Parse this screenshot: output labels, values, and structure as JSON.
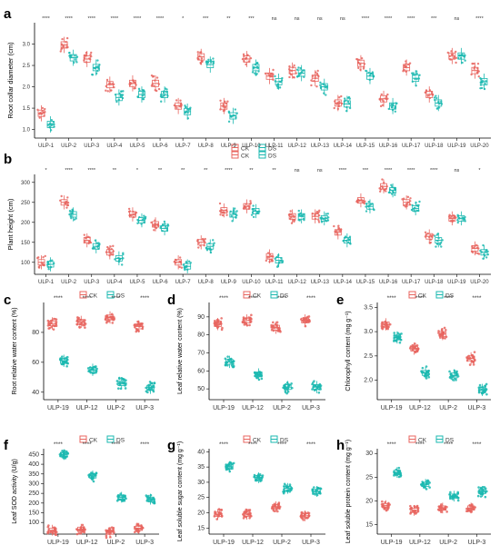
{
  "figure": {
    "colors": {
      "CK": "#e8655f",
      "DS": "#1bb8b0"
    }
  },
  "chart_data": [
    {
      "panel": "a",
      "type": "box",
      "ylabel": "Root collar diameter (cm)",
      "yticks": [
        "1.0",
        "1.5",
        "2.0",
        "2.5",
        "3.0"
      ],
      "ylim": [
        0.8,
        3.5
      ],
      "categories": [
        "ULP-1",
        "ULP-2",
        "ULP-3",
        "ULP-4",
        "ULP-5",
        "ULP-6",
        "ULP-7",
        "ULP-8",
        "ULP-9",
        "ULP-10",
        "ULP-11",
        "ULP-12",
        "ULP-13",
        "ULP-14",
        "ULP-15",
        "ULP-16",
        "ULP-17",
        "ULP-18",
        "ULP-19",
        "ULP-20"
      ],
      "significance": [
        "****",
        "****",
        "****",
        "****",
        "****",
        "****",
        "*",
        "***",
        "**",
        "***",
        "ns",
        "ns",
        "ns",
        "ns",
        "****",
        "****",
        "****",
        "***",
        "ns",
        "****"
      ],
      "legend": [
        "CK",
        "DS"
      ],
      "series": [
        {
          "name": "CK",
          "values": [
            1.38,
            2.98,
            2.65,
            2.05,
            2.08,
            2.08,
            1.55,
            2.7,
            1.55,
            2.65,
            2.25,
            2.38,
            2.2,
            1.62,
            2.55,
            1.72,
            2.45,
            1.82,
            2.72,
            2.38
          ]
        },
        {
          "name": "DS",
          "values": [
            1.12,
            2.68,
            2.45,
            1.75,
            1.82,
            1.82,
            1.42,
            2.52,
            1.32,
            2.45,
            2.12,
            2.32,
            2.0,
            1.6,
            2.25,
            1.55,
            2.2,
            1.62,
            2.72,
            2.12
          ]
        }
      ]
    },
    {
      "panel": "b",
      "type": "box",
      "ylabel": "Plant height (cm)",
      "yticks": [
        "100",
        "150",
        "200",
        "250",
        "300"
      ],
      "ylim": [
        70,
        320
      ],
      "categories": [
        "ULP-1",
        "ULP-2",
        "ULP-3",
        "ULP-4",
        "ULP-5",
        "ULP-6",
        "ULP-7",
        "ULP-8",
        "ULP-9",
        "ULP-10",
        "ULP-11",
        "ULP-12",
        "ULP-13",
        "ULP-14",
        "ULP-15",
        "ULP-16",
        "ULP-17",
        "ULP-18",
        "ULP-19",
        "ULP-20"
      ],
      "significance": [
        "*",
        "****",
        "****",
        "**",
        "*",
        "**",
        "**",
        "**",
        "****",
        "**",
        "**",
        "ns",
        "ns",
        "****",
        "***",
        "****",
        "****",
        "****",
        "ns",
        "*"
      ],
      "legend": [
        "CK",
        "DS"
      ],
      "series": [
        {
          "name": "CK",
          "values": [
            100,
            250,
            155,
            125,
            220,
            195,
            100,
            150,
            230,
            240,
            115,
            215,
            215,
            175,
            255,
            290,
            250,
            165,
            210,
            135
          ]
        },
        {
          "name": "DS",
          "values": [
            95,
            220,
            140,
            110,
            205,
            185,
            90,
            140,
            220,
            228,
            105,
            215,
            210,
            155,
            240,
            280,
            235,
            155,
            210,
            125
          ]
        }
      ]
    },
    {
      "panel": "c",
      "type": "box",
      "ylabel": "Root relative water content (%)",
      "yticks": [
        "40",
        "60",
        "80"
      ],
      "ylim": [
        35,
        100
      ],
      "categories": [
        "ULP-19",
        "ULP-12",
        "ULP-2",
        "ULP-3"
      ],
      "significance": [
        "****",
        "****",
        "****",
        "****"
      ],
      "legend": [
        "CK",
        "DS"
      ],
      "series": [
        {
          "name": "CK",
          "values": [
            86,
            87,
            90,
            84
          ]
        },
        {
          "name": "DS",
          "values": [
            61,
            55,
            46,
            43
          ]
        }
      ]
    },
    {
      "panel": "d",
      "type": "box",
      "ylabel": "Leaf relative water content (%)",
      "yticks": [
        "50",
        "60",
        "70",
        "80",
        "90"
      ],
      "ylim": [
        44,
        98
      ],
      "categories": [
        "ULP-19",
        "ULP-12",
        "ULP-2",
        "ULP-3"
      ],
      "significance": [
        "****",
        "****",
        "****",
        "****"
      ],
      "legend": [
        "CK",
        "DS"
      ],
      "series": [
        {
          "name": "CK",
          "values": [
            86,
            88,
            84,
            88
          ]
        },
        {
          "name": "DS",
          "values": [
            65,
            58,
            51,
            51
          ]
        }
      ]
    },
    {
      "panel": "e",
      "type": "box",
      "ylabel": "Chlorophyll content (mg g⁻¹)",
      "yticks": [
        "2.0",
        "2.5",
        "3.0",
        "3.5"
      ],
      "ylim": [
        1.6,
        3.6
      ],
      "categories": [
        "ULP-19",
        "ULP-12",
        "ULP-2",
        "ULP-3"
      ],
      "significance": [
        "****",
        "****",
        "****",
        "****"
      ],
      "legend": [
        "CK",
        "DS"
      ],
      "series": [
        {
          "name": "CK",
          "values": [
            3.15,
            2.65,
            2.95,
            2.45
          ]
        },
        {
          "name": "DS",
          "values": [
            2.88,
            2.15,
            2.1,
            1.8
          ]
        }
      ]
    },
    {
      "panel": "f",
      "type": "box",
      "ylabel": "Leaf SOD activity (U/g)",
      "yticks": [
        "100",
        "150",
        "200",
        "250",
        "300",
        "350",
        "400",
        "450"
      ],
      "ylim": [
        40,
        480
      ],
      "categories": [
        "ULP-19",
        "ULP-12",
        "ULP-2",
        "ULP-3"
      ],
      "significance": [
        "****",
        "****",
        "****",
        "****"
      ],
      "legend": [
        "CK",
        "DS"
      ],
      "series": [
        {
          "name": "CK",
          "values": [
            60,
            65,
            50,
            70
          ]
        },
        {
          "name": "DS",
          "values": [
            450,
            340,
            230,
            220
          ]
        }
      ]
    },
    {
      "panel": "g",
      "type": "box",
      "ylabel": "Leaf soluble sugar content (mg g⁻¹)",
      "yticks": [
        "15",
        "20",
        "25",
        "30",
        "35",
        "40"
      ],
      "ylim": [
        13,
        41
      ],
      "categories": [
        "ULP-19",
        "ULP-12",
        "ULP-2",
        "ULP-3"
      ],
      "significance": [
        "****",
        "****",
        "****",
        "****"
      ],
      "legend": [
        "CK",
        "DS"
      ],
      "series": [
        {
          "name": "CK",
          "values": [
            19.5,
            19.5,
            22,
            19
          ]
        },
        {
          "name": "DS",
          "values": [
            35,
            31.5,
            28,
            27
          ]
        }
      ]
    },
    {
      "panel": "h",
      "type": "box",
      "ylabel": "Leaf soluble protein content (mg g⁻¹)",
      "yticks": [
        "15",
        "20",
        "25",
        "30"
      ],
      "ylim": [
        13,
        31
      ],
      "categories": [
        "ULP-19",
        "ULP-12",
        "ULP-2",
        "ULP-3"
      ],
      "significance": [
        "****",
        "****",
        "****",
        "****"
      ],
      "legend": [
        "CK",
        "DS"
      ],
      "series": [
        {
          "name": "CK",
          "values": [
            19,
            18,
            18.5,
            18.5
          ]
        },
        {
          "name": "DS",
          "values": [
            26,
            23.5,
            21,
            22
          ]
        }
      ]
    }
  ]
}
